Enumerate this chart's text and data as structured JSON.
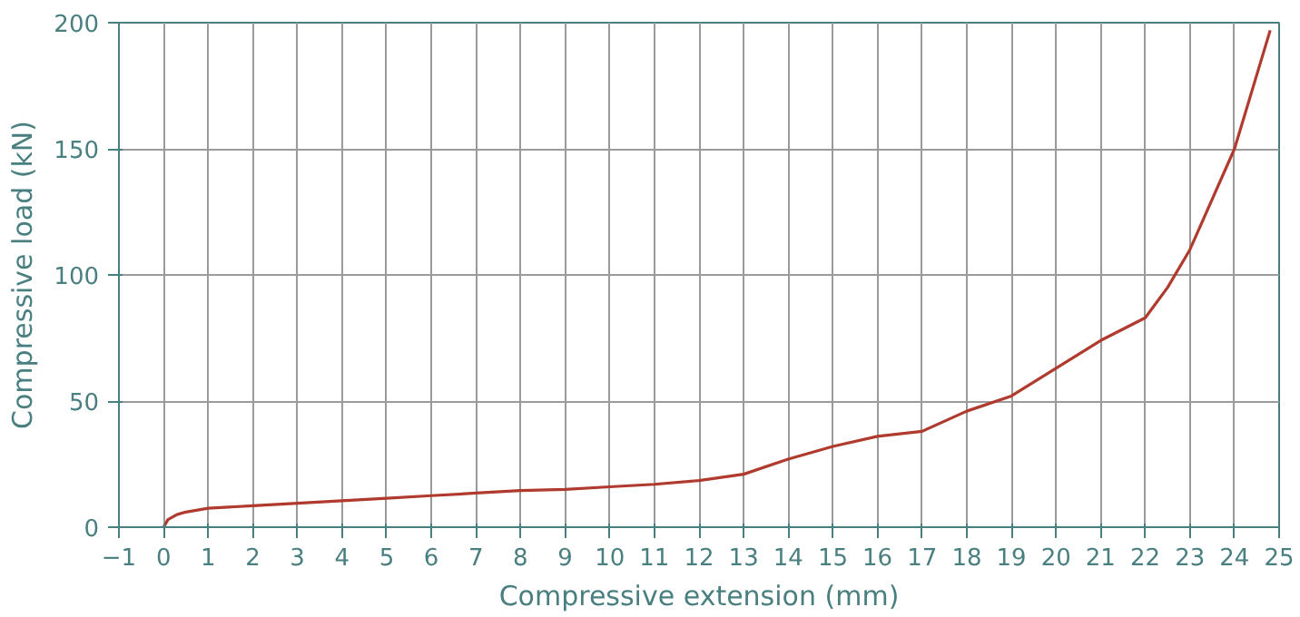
{
  "chart_data": {
    "type": "line",
    "xlabel": "Compressive extension (mm)",
    "ylabel": "Compressive load (kN)",
    "x": [
      0,
      0.1,
      0.3,
      0.5,
      1,
      2,
      3,
      4,
      5,
      6,
      7,
      8,
      9,
      10,
      11,
      12,
      13,
      14,
      15,
      16,
      17,
      18,
      19,
      20,
      21,
      22,
      22.5,
      23,
      24,
      24.8
    ],
    "series": [
      {
        "color": "#b03a2e",
        "values": [
          0,
          3,
          5,
          6,
          7.5,
          8.5,
          9.5,
          10.5,
          11.5,
          12.5,
          13.5,
          14.5,
          15,
          16,
          17,
          18.5,
          21,
          27,
          32,
          36,
          38,
          46,
          52,
          63,
          74,
          83,
          95,
          110,
          150,
          197
        ]
      }
    ],
    "xlim": [
      -1,
      25
    ],
    "xticks": [
      -1,
      0,
      1,
      2,
      3,
      4,
      5,
      6,
      7,
      8,
      9,
      10,
      11,
      12,
      13,
      14,
      15,
      16,
      17,
      18,
      19,
      20,
      21,
      22,
      23,
      24,
      25
    ],
    "ylim": [
      0,
      200
    ],
    "yticks": [
      0,
      50,
      100,
      150,
      200
    ],
    "grid": true,
    "marker": "none",
    "line_style": "solid"
  }
}
